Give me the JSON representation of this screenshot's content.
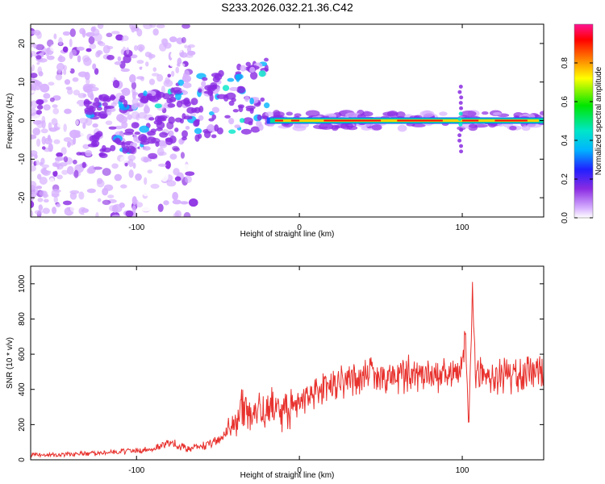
{
  "title": "S233.2026.032.21.36.C42",
  "colors": {
    "trace": "#e8322e",
    "signal": "#ff0000",
    "band": "#1a0a4e",
    "scatter": "#7a3cf0"
  },
  "chart_data": [
    {
      "type": "heatmap",
      "name": "spectrogram",
      "xlabel": "Height of straight line (km)",
      "ylabel": "Frequency (Hz)",
      "xlim": [
        -165,
        150
      ],
      "ylim": [
        -25,
        25
      ],
      "xticks": [
        -100,
        0,
        100
      ],
      "yticks": [
        -20,
        -10,
        0,
        10,
        20
      ],
      "colorbar": {
        "label": "Normalized spectral amplitude",
        "range": [
          0,
          1
        ],
        "ticks": [
          0.0,
          0.2,
          0.4,
          0.6,
          0.8
        ]
      },
      "features": [
        {
          "label": "scattered noise",
          "x_range": [
            -165,
            -90
          ],
          "freq_range": [
            -25,
            25
          ],
          "amplitude": 0.15
        },
        {
          "label": "rising wisps",
          "x_range": [
            -130,
            -20
          ],
          "freq_range": [
            -8,
            16
          ],
          "amplitude": 0.35
        },
        {
          "label": "steady tone near 0 Hz",
          "x_range": [
            -20,
            150
          ],
          "freq": 0,
          "amplitude": 0.95
        },
        {
          "label": "broadband spike",
          "x": 99,
          "freq_range": [
            -8,
            9
          ],
          "amplitude": 0.4
        }
      ]
    },
    {
      "type": "line",
      "name": "snr",
      "xlabel": "Height of straight line (km)",
      "ylabel": "SNR (10 * v/v)",
      "xlim": [
        -165,
        150
      ],
      "ylim": [
        0,
        1100
      ],
      "xticks": [
        -100,
        0,
        100
      ],
      "yticks": [
        0,
        200,
        400,
        600,
        800,
        1000
      ],
      "x": [
        -165,
        -150,
        -130,
        -110,
        -90,
        -80,
        -70,
        -60,
        -50,
        -40,
        -35,
        -30,
        -20,
        -10,
        0,
        10,
        20,
        30,
        50,
        70,
        90,
        98,
        100,
        102,
        104,
        106,
        108,
        110,
        130,
        150
      ],
      "values": [
        30,
        30,
        35,
        45,
        60,
        100,
        65,
        75,
        110,
        210,
        330,
        250,
        300,
        280,
        320,
        380,
        430,
        465,
        480,
        485,
        485,
        470,
        510,
        700,
        160,
        950,
        500,
        480,
        480,
        480
      ]
    }
  ]
}
